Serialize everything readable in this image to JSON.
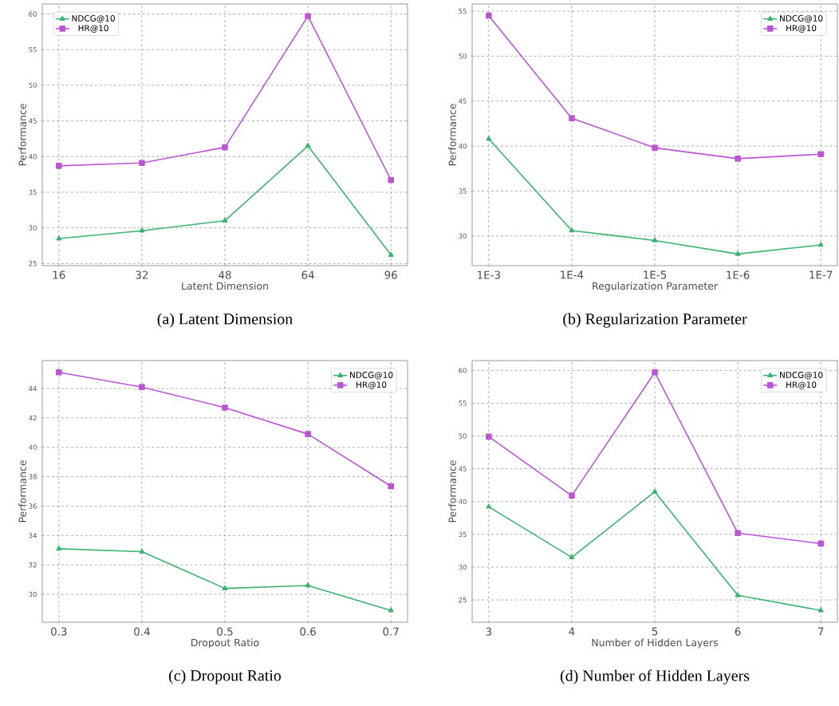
{
  "chart_data": [
    {
      "type": "line",
      "title": "(a) Latent Dimension",
      "xlabel": "Latent Dimension",
      "ylabel": "Performance",
      "categories": [
        "16",
        "32",
        "48",
        "64",
        "96"
      ],
      "ylim": [
        24.7,
        61.4
      ],
      "yticks": [
        25,
        30,
        35,
        40,
        45,
        50,
        55,
        60
      ],
      "grid": true,
      "legend": "top left",
      "series": [
        {
          "name": "NDCG@10",
          "color": "#3cb371",
          "marker": "triangle",
          "values": [
            28.5,
            29.6,
            31.0,
            41.5,
            26.2
          ]
        },
        {
          "name": "HR@10",
          "color": "#ba55d3",
          "marker": "square",
          "values": [
            38.7,
            39.1,
            41.3,
            59.7,
            36.7
          ]
        }
      ]
    },
    {
      "type": "line",
      "title": "(b) Regularization Parameter",
      "xlabel": "Regularization Parameter",
      "ylabel": "Performance",
      "categories": [
        "1E-3",
        "1E-4",
        "1E-5",
        "1E-6",
        "1E-7"
      ],
      "ylim": [
        26.7,
        55.8
      ],
      "yticks": [
        30,
        35,
        40,
        45,
        50,
        55
      ],
      "grid": true,
      "legend": "top right",
      "series": [
        {
          "name": "NDCG@10",
          "color": "#3cb371",
          "marker": "triangle",
          "values": [
            40.8,
            30.6,
            29.5,
            28.0,
            29.0
          ]
        },
        {
          "name": "HR@10",
          "color": "#ba55d3",
          "marker": "square",
          "values": [
            54.5,
            43.1,
            39.8,
            38.6,
            39.1
          ]
        }
      ]
    },
    {
      "type": "line",
      "title": "(c) Dropout Ratio",
      "xlabel": "Dropout Ratio",
      "ylabel": "Performance",
      "x": [
        0.3,
        0.4,
        0.5,
        0.6,
        0.7
      ],
      "xlim": [
        0.28,
        0.72
      ],
      "xticks": [
        0.3,
        0.4,
        0.5,
        0.6,
        0.7
      ],
      "ylim": [
        28.1,
        45.9
      ],
      "yticks": [
        30,
        32,
        34,
        36,
        38,
        40,
        42,
        44
      ],
      "grid": true,
      "legend": "top right",
      "series": [
        {
          "name": "NDCG@10",
          "color": "#3cb371",
          "marker": "triangle",
          "values": [
            33.1,
            32.9,
            30.4,
            30.6,
            28.9
          ]
        },
        {
          "name": "HR@10",
          "color": "#ba55d3",
          "marker": "square",
          "values": [
            45.1,
            44.1,
            42.7,
            40.9,
            37.35
          ]
        }
      ]
    },
    {
      "type": "line",
      "title": "(d) Number of Hidden Layers",
      "xlabel": "Number of Hidden Layers",
      "ylabel": "Performance",
      "x": [
        3,
        4,
        5,
        6,
        7
      ],
      "xlim": [
        2.8,
        7.2
      ],
      "xticks": [
        3,
        4,
        5,
        6,
        7
      ],
      "ylim": [
        21.6,
        61.5
      ],
      "yticks": [
        25,
        30,
        35,
        40,
        45,
        50,
        55,
        60
      ],
      "grid": true,
      "legend": "top right",
      "series": [
        {
          "name": "NDCG@10",
          "color": "#3cb371",
          "marker": "triangle",
          "values": [
            39.2,
            31.5,
            41.5,
            25.7,
            23.4
          ]
        },
        {
          "name": "HR@10",
          "color": "#ba55d3",
          "marker": "square",
          "values": [
            49.9,
            40.9,
            59.7,
            35.2,
            33.6
          ]
        }
      ]
    }
  ]
}
